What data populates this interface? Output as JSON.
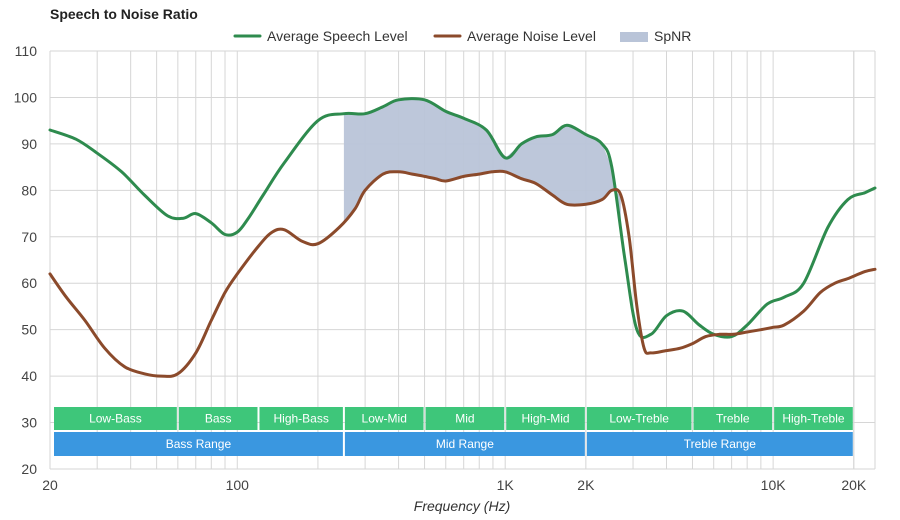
{
  "chart_data": {
    "type": "line",
    "title": "Speech to Noise Ratio",
    "xlabel": "Frequency (Hz)",
    "ylabel": "",
    "xscale": "log",
    "xlim": [
      20,
      24000
    ],
    "ylim": [
      20,
      110
    ],
    "yticks": [
      20,
      30,
      40,
      50,
      60,
      70,
      80,
      90,
      100,
      110
    ],
    "xticks": [
      {
        "value": 20,
        "label": "20"
      },
      {
        "value": 100,
        "label": "100"
      },
      {
        "value": 1000,
        "label": "1K"
      },
      {
        "value": 2000,
        "label": "2K"
      },
      {
        "value": 10000,
        "label": "10K"
      },
      {
        "value": 20000,
        "label": "20K"
      }
    ],
    "grid": true,
    "legend": "top-center",
    "series": [
      {
        "name": "Average Speech Level",
        "color": "#2e8b4e",
        "points": [
          [
            20,
            93
          ],
          [
            25,
            91
          ],
          [
            30,
            88
          ],
          [
            37,
            84
          ],
          [
            45,
            79
          ],
          [
            55,
            74.5
          ],
          [
            63,
            74
          ],
          [
            70,
            75
          ],
          [
            80,
            73
          ],
          [
            90,
            70.5
          ],
          [
            100,
            71
          ],
          [
            110,
            74
          ],
          [
            125,
            79
          ],
          [
            150,
            86
          ],
          [
            200,
            95
          ],
          [
            250,
            96.5
          ],
          [
            300,
            96.5
          ],
          [
            350,
            98
          ],
          [
            400,
            99.5
          ],
          [
            500,
            99.5
          ],
          [
            600,
            97
          ],
          [
            700,
            95.5
          ],
          [
            850,
            93
          ],
          [
            1000,
            87
          ],
          [
            1150,
            90
          ],
          [
            1300,
            91.5
          ],
          [
            1500,
            92
          ],
          [
            1700,
            94
          ],
          [
            2000,
            92
          ],
          [
            2300,
            90
          ],
          [
            2500,
            85
          ],
          [
            2800,
            65
          ],
          [
            3100,
            50
          ],
          [
            3500,
            49
          ],
          [
            4000,
            53
          ],
          [
            4600,
            54
          ],
          [
            5300,
            51
          ],
          [
            6000,
            49
          ],
          [
            7000,
            48.5
          ],
          [
            8000,
            51
          ],
          [
            9500,
            55.5
          ],
          [
            11000,
            57
          ],
          [
            13000,
            60
          ],
          [
            16000,
            72
          ],
          [
            19000,
            78
          ],
          [
            22000,
            79.5
          ],
          [
            24000,
            80.5
          ]
        ]
      },
      {
        "name": "Average Noise Level",
        "color": "#8b4a2b",
        "points": [
          [
            20,
            62
          ],
          [
            23,
            57
          ],
          [
            27,
            52
          ],
          [
            32,
            46
          ],
          [
            38,
            42
          ],
          [
            45,
            40.5
          ],
          [
            52,
            40
          ],
          [
            60,
            40.5
          ],
          [
            70,
            45
          ],
          [
            80,
            52
          ],
          [
            90,
            58
          ],
          [
            100,
            62
          ],
          [
            120,
            68
          ],
          [
            135,
            71
          ],
          [
            150,
            71.5
          ],
          [
            175,
            69
          ],
          [
            200,
            68.5
          ],
          [
            240,
            72
          ],
          [
            275,
            76
          ],
          [
            300,
            80
          ],
          [
            350,
            83.5
          ],
          [
            400,
            84
          ],
          [
            450,
            83.5
          ],
          [
            500,
            83
          ],
          [
            550,
            82.5
          ],
          [
            600,
            82
          ],
          [
            700,
            83
          ],
          [
            800,
            83.5
          ],
          [
            900,
            84
          ],
          [
            1000,
            84
          ],
          [
            1150,
            82.5
          ],
          [
            1300,
            81.5
          ],
          [
            1500,
            79
          ],
          [
            1700,
            77
          ],
          [
            2000,
            77
          ],
          [
            2300,
            78
          ],
          [
            2500,
            80
          ],
          [
            2700,
            79
          ],
          [
            2900,
            70
          ],
          [
            3100,
            55
          ],
          [
            3300,
            46
          ],
          [
            3500,
            45
          ],
          [
            4000,
            45.5
          ],
          [
            4500,
            46
          ],
          [
            5000,
            47
          ],
          [
            5600,
            48.5
          ],
          [
            6300,
            49
          ],
          [
            7100,
            49
          ],
          [
            8000,
            49.5
          ],
          [
            9000,
            50
          ],
          [
            10000,
            50.5
          ],
          [
            11000,
            51
          ],
          [
            13000,
            54
          ],
          [
            15000,
            58
          ],
          [
            17000,
            60
          ],
          [
            19000,
            61
          ],
          [
            22000,
            62.5
          ],
          [
            24000,
            63
          ]
        ]
      }
    ],
    "spnr": {
      "name": "SpNR",
      "color": "#b9c4d8",
      "range": [
        250,
        2700
      ]
    },
    "bands": [
      {
        "label": "Low-Bass",
        "range": [
          20,
          60
        ],
        "row": 1
      },
      {
        "label": "Bass",
        "range": [
          60,
          120
        ],
        "row": 1
      },
      {
        "label": "High-Bass",
        "range": [
          120,
          250
        ],
        "row": 1
      },
      {
        "label": "Low-Mid",
        "range": [
          250,
          500
        ],
        "row": 1
      },
      {
        "label": "Mid",
        "range": [
          500,
          1000
        ],
        "row": 1
      },
      {
        "label": "High-Mid",
        "range": [
          1000,
          2000
        ],
        "row": 1
      },
      {
        "label": "Low-Treble",
        "range": [
          2000,
          5000
        ],
        "row": 1
      },
      {
        "label": "Treble",
        "range": [
          5000,
          10000
        ],
        "row": 1
      },
      {
        "label": "High-Treble",
        "range": [
          10000,
          20000
        ],
        "row": 1
      },
      {
        "label": "Bass Range",
        "range": [
          20,
          250
        ],
        "row": 2
      },
      {
        "label": "Mid Range",
        "range": [
          250,
          2000
        ],
        "row": 2
      },
      {
        "label": "Treble Range",
        "range": [
          2000,
          20000
        ],
        "row": 2
      }
    ],
    "band_colors": {
      "row1": "#3ec67a",
      "row2": "#3a97e0"
    }
  }
}
